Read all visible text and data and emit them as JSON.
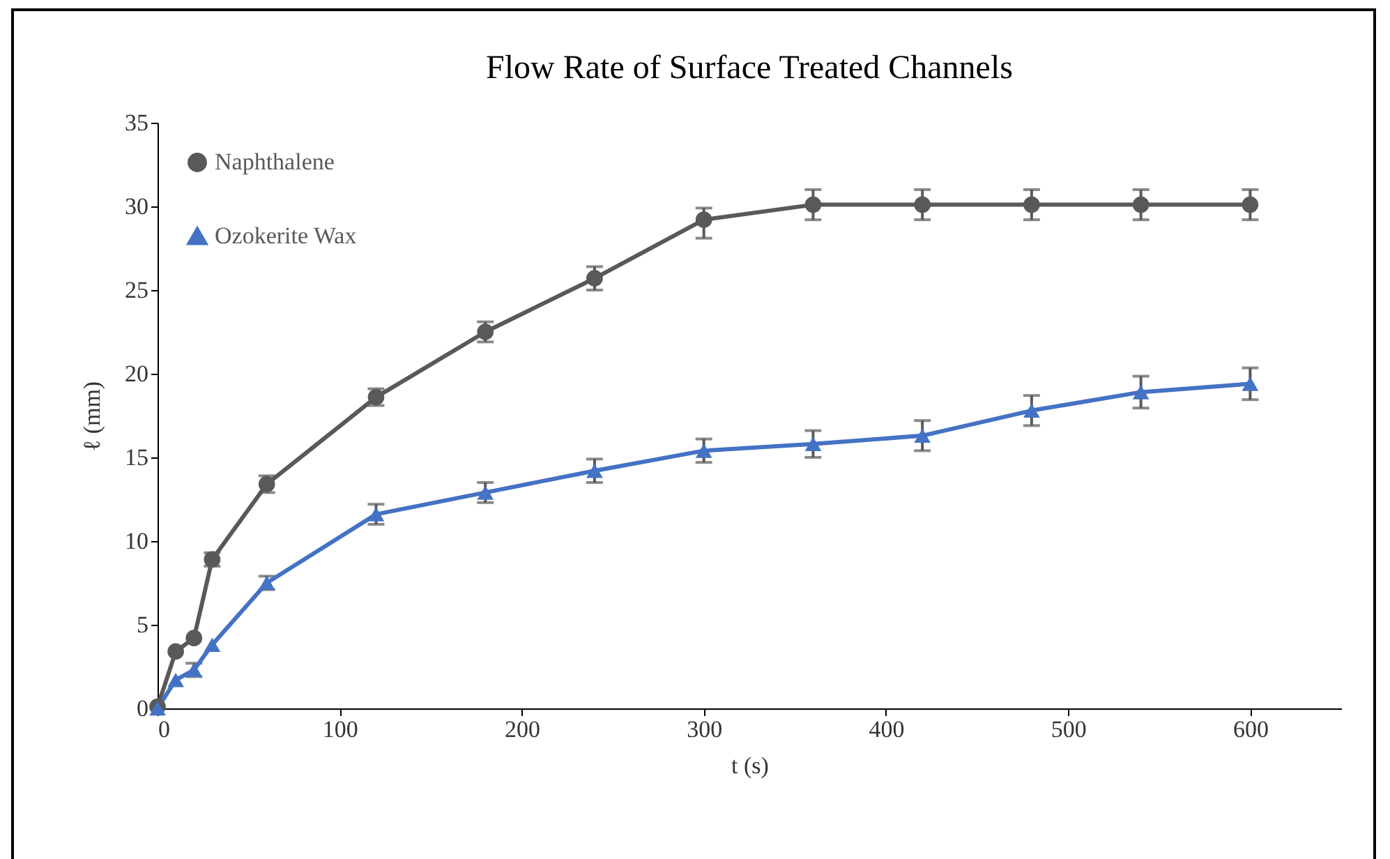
{
  "chart_data": {
    "type": "line",
    "title": "Flow Rate of Surface Treated Channels",
    "xlabel": "t (s)",
    "ylabel": "ℓ (mm)",
    "x": [
      0,
      10,
      20,
      30,
      60,
      120,
      180,
      240,
      300,
      360,
      420,
      480,
      540,
      600
    ],
    "series": [
      {
        "name": "Naphthalene",
        "color": "#595959",
        "marker": "circle",
        "values": [
          0.1,
          3.4,
          4.2,
          8.9,
          13.4,
          18.6,
          22.5,
          25.7,
          29.2,
          30.1,
          30.1,
          30.1,
          30.1,
          30.1
        ],
        "errors": [
          null,
          null,
          null,
          0.4,
          0.5,
          0.5,
          0.6,
          0.7,
          [
            28.1,
            29.9
          ],
          0.9,
          0.9,
          0.9,
          0.9,
          0.9
        ]
      },
      {
        "name": "Ozokerite Wax",
        "color": "#4472c4",
        "marker": "triangle",
        "values": [
          0,
          1.7,
          2.3,
          3.8,
          7.5,
          11.6,
          12.9,
          14.2,
          15.4,
          15.8,
          16.3,
          17.8,
          18.9,
          19.4
        ],
        "errors": [
          null,
          null,
          0.4,
          null,
          0.4,
          0.6,
          0.6,
          0.7,
          0.7,
          0.8,
          0.9,
          0.9,
          0.95,
          0.95
        ]
      }
    ],
    "xlim": [
      0,
      650
    ],
    "xticks": [
      0,
      100,
      200,
      300,
      400,
      500,
      600
    ],
    "ylim": [
      0,
      35
    ],
    "yticks": [
      0,
      5,
      10,
      15,
      20,
      25,
      30,
      35
    ],
    "legend": "top left",
    "grid": false
  }
}
